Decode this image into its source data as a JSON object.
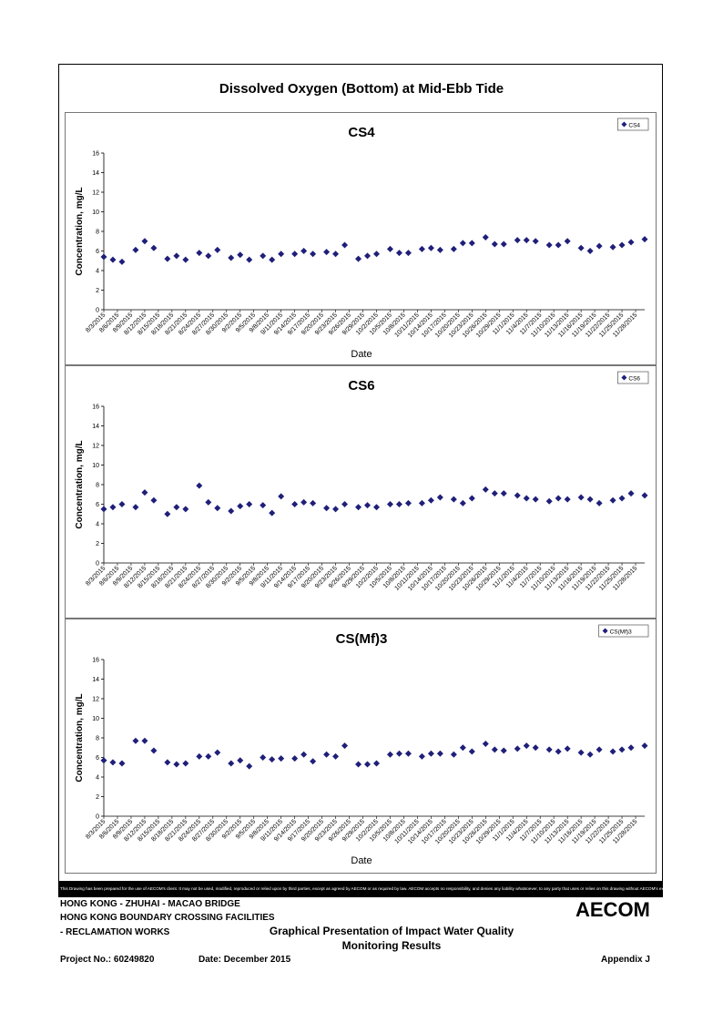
{
  "page": {
    "title": "Dissolved Oxygen (Bottom) at Mid-Ebb Tide",
    "disclaimer": "This Drawing has been prepared for the use of AECOM's client. It may not be used, modified, reproduced or relied upon by third parties, except as agreed by AECOM or as required by law. AECOM accepts no responsibility, and denies any liability whatsoever, to any party that uses or relies on this drawing without AECOM's express written consent.",
    "footer": {
      "line1": "HONG KONG - ZHUHAI - MACAO BRIDGE",
      "line2": "HONG KONG BOUNDARY CROSSING FACILITIES",
      "line3": "- RECLAMATION WORKS",
      "heading1": "Graphical Presentation of Impact Water Quality",
      "heading2": "Monitoring Results",
      "project": "Project No.: 60249820",
      "date": "Date: December 2015",
      "appendix": "Appendix J",
      "logo": "AECOM"
    },
    "marker_color": "#1f1f7a"
  },
  "chart_data": [
    {
      "type": "scatter",
      "title": "CS4",
      "xlabel": "Date",
      "ylabel": "Concentration, mg/L",
      "ylim": [
        0,
        16
      ],
      "yticks": [
        0,
        2,
        4,
        6,
        8,
        10,
        12,
        14,
        16
      ],
      "legend": "top-right",
      "grid": false,
      "x_range": [
        "8/3/2015",
        "11/30/2015"
      ],
      "xtick_labels": [
        "8/3/2015",
        "8/6/2015",
        "8/9/2015",
        "8/12/2015",
        "8/15/2015",
        "8/18/2015",
        "8/21/2015",
        "8/24/2015",
        "8/27/2015",
        "8/30/2015",
        "9/2/2015",
        "9/5/2015",
        "9/8/2015",
        "9/11/2015",
        "9/14/2015",
        "9/17/2015",
        "9/20/2015",
        "9/23/2015",
        "9/26/2015",
        "9/29/2015",
        "10/2/2015",
        "10/5/2015",
        "10/8/2015",
        "10/11/2015",
        "10/14/2015",
        "10/17/2015",
        "10/20/2015",
        "10/23/2015",
        "10/26/2015",
        "10/29/2015",
        "11/1/2015",
        "11/4/2015",
        "11/7/2015",
        "11/10/2015",
        "11/13/2015",
        "11/16/2015",
        "11/19/2015",
        "11/22/2015",
        "11/25/2015",
        "11/28/2015"
      ],
      "series": [
        {
          "name": "CS4",
          "x": [
            "8/3/2015",
            "8/5/2015",
            "8/7/2015",
            "8/10/2015",
            "8/12/2015",
            "8/14/2015",
            "8/17/2015",
            "8/19/2015",
            "8/21/2015",
            "8/24/2015",
            "8/26/2015",
            "8/28/2015",
            "8/31/2015",
            "9/2/2015",
            "9/4/2015",
            "9/7/2015",
            "9/9/2015",
            "9/11/2015",
            "9/14/2015",
            "9/16/2015",
            "9/18/2015",
            "9/21/2015",
            "9/23/2015",
            "9/25/2015",
            "9/28/2015",
            "9/30/2015",
            "10/2/2015",
            "10/5/2015",
            "10/7/2015",
            "10/9/2015",
            "10/12/2015",
            "10/14/2015",
            "10/16/2015",
            "10/19/2015",
            "10/21/2015",
            "10/23/2015",
            "10/26/2015",
            "10/28/2015",
            "10/30/2015",
            "11/2/2015",
            "11/4/2015",
            "11/6/2015",
            "11/9/2015",
            "11/11/2015",
            "11/13/2015",
            "11/16/2015",
            "11/18/2015",
            "11/20/2015",
            "11/23/2015",
            "11/25/2015",
            "11/27/2015",
            "11/30/2015"
          ],
          "y": [
            5.4,
            5.1,
            4.9,
            6.1,
            7.0,
            6.3,
            5.2,
            5.5,
            5.1,
            5.8,
            5.5,
            6.1,
            5.3,
            5.6,
            5.1,
            5.5,
            5.1,
            5.7,
            5.7,
            6.0,
            5.7,
            5.9,
            5.7,
            6.6,
            5.2,
            5.5,
            5.7,
            6.2,
            5.8,
            5.8,
            6.2,
            6.3,
            6.1,
            6.2,
            6.8,
            6.8,
            7.4,
            6.7,
            6.7,
            7.1,
            7.1,
            7.0,
            6.6,
            6.6,
            7.0,
            6.3,
            6.0,
            6.5,
            6.4,
            6.6,
            6.9,
            7.2
          ]
        }
      ]
    },
    {
      "type": "scatter",
      "title": "CS6",
      "xlabel": "",
      "ylabel": "Concentration, mg/L",
      "ylim": [
        0,
        16
      ],
      "yticks": [
        0,
        2,
        4,
        6,
        8,
        10,
        12,
        14,
        16
      ],
      "legend": "top-right",
      "grid": false,
      "x_range": [
        "8/3/2015",
        "11/30/2015"
      ],
      "xtick_labels": [
        "8/3/2015",
        "8/6/2015",
        "8/9/2015",
        "8/12/2015",
        "8/15/2015",
        "8/18/2015",
        "8/21/2015",
        "8/24/2015",
        "8/27/2015",
        "8/30/2015",
        "9/2/2015",
        "9/5/2015",
        "9/8/2015",
        "9/11/2015",
        "9/14/2015",
        "9/17/2015",
        "9/20/2015",
        "9/23/2015",
        "9/26/2015",
        "9/29/2015",
        "10/2/2015",
        "10/5/2015",
        "10/8/2015",
        "10/11/2015",
        "10/14/2015",
        "10/17/2015",
        "10/20/2015",
        "10/23/2015",
        "10/26/2015",
        "10/29/2015",
        "11/1/2015",
        "11/4/2015",
        "11/7/2015",
        "11/10/2015",
        "11/13/2015",
        "11/16/2015",
        "11/19/2015",
        "11/22/2015",
        "11/25/2015",
        "11/28/2015"
      ],
      "series": [
        {
          "name": "CS6",
          "x": [
            "8/3/2015",
            "8/5/2015",
            "8/7/2015",
            "8/10/2015",
            "8/12/2015",
            "8/14/2015",
            "8/17/2015",
            "8/19/2015",
            "8/21/2015",
            "8/24/2015",
            "8/26/2015",
            "8/28/2015",
            "8/31/2015",
            "9/2/2015",
            "9/4/2015",
            "9/7/2015",
            "9/9/2015",
            "9/11/2015",
            "9/14/2015",
            "9/16/2015",
            "9/18/2015",
            "9/21/2015",
            "9/23/2015",
            "9/25/2015",
            "9/28/2015",
            "9/30/2015",
            "10/2/2015",
            "10/5/2015",
            "10/7/2015",
            "10/9/2015",
            "10/12/2015",
            "10/14/2015",
            "10/16/2015",
            "10/19/2015",
            "10/21/2015",
            "10/23/2015",
            "10/26/2015",
            "10/28/2015",
            "10/30/2015",
            "11/2/2015",
            "11/4/2015",
            "11/6/2015",
            "11/9/2015",
            "11/11/2015",
            "11/13/2015",
            "11/16/2015",
            "11/18/2015",
            "11/20/2015",
            "11/23/2015",
            "11/25/2015",
            "11/27/2015",
            "11/30/2015"
          ],
          "y": [
            5.5,
            5.7,
            6.0,
            5.7,
            7.2,
            6.4,
            5.0,
            5.7,
            5.5,
            7.9,
            6.2,
            5.6,
            5.3,
            5.8,
            6.0,
            5.9,
            5.1,
            6.8,
            6.0,
            6.2,
            6.1,
            5.6,
            5.5,
            6.0,
            5.7,
            5.9,
            5.7,
            6.0,
            6.0,
            6.1,
            6.1,
            6.4,
            6.7,
            6.5,
            6.1,
            6.6,
            7.5,
            7.1,
            7.1,
            6.9,
            6.6,
            6.5,
            6.3,
            6.6,
            6.5,
            6.7,
            6.5,
            6.1,
            6.4,
            6.6,
            7.1,
            6.9
          ]
        }
      ]
    },
    {
      "type": "scatter",
      "title": "CS(Mf)3",
      "xlabel": "Date",
      "ylabel": "Concentration, mg/L",
      "ylim": [
        0,
        16
      ],
      "yticks": [
        0,
        2,
        4,
        6,
        8,
        10,
        12,
        14,
        16
      ],
      "legend": "top-right",
      "grid": false,
      "x_range": [
        "8/3/2015",
        "11/30/2015"
      ],
      "xtick_labels": [
        "8/3/2015",
        "8/6/2015",
        "8/9/2015",
        "8/12/2015",
        "8/15/2015",
        "8/18/2015",
        "8/21/2015",
        "8/24/2015",
        "8/27/2015",
        "8/30/2015",
        "9/2/2015",
        "9/5/2015",
        "9/8/2015",
        "9/11/2015",
        "9/14/2015",
        "9/17/2015",
        "9/20/2015",
        "9/23/2015",
        "9/26/2015",
        "9/29/2015",
        "10/2/2015",
        "10/5/2015",
        "10/8/2015",
        "10/11/2015",
        "10/14/2015",
        "10/17/2015",
        "10/20/2015",
        "10/23/2015",
        "10/26/2015",
        "10/29/2015",
        "11/1/2015",
        "11/4/2015",
        "11/7/2015",
        "11/10/2015",
        "11/13/2015",
        "11/16/2015",
        "11/19/2015",
        "11/22/2015",
        "11/25/2015",
        "11/28/2015"
      ],
      "series": [
        {
          "name": "CS(Mf)3",
          "x": [
            "8/3/2015",
            "8/5/2015",
            "8/7/2015",
            "8/10/2015",
            "8/12/2015",
            "8/14/2015",
            "8/17/2015",
            "8/19/2015",
            "8/21/2015",
            "8/24/2015",
            "8/26/2015",
            "8/28/2015",
            "8/31/2015",
            "9/2/2015",
            "9/4/2015",
            "9/7/2015",
            "9/9/2015",
            "9/11/2015",
            "9/14/2015",
            "9/16/2015",
            "9/18/2015",
            "9/21/2015",
            "9/23/2015",
            "9/25/2015",
            "9/28/2015",
            "9/30/2015",
            "10/2/2015",
            "10/5/2015",
            "10/7/2015",
            "10/9/2015",
            "10/12/2015",
            "10/14/2015",
            "10/16/2015",
            "10/19/2015",
            "10/21/2015",
            "10/23/2015",
            "10/26/2015",
            "10/28/2015",
            "10/30/2015",
            "11/2/2015",
            "11/4/2015",
            "11/6/2015",
            "11/9/2015",
            "11/11/2015",
            "11/13/2015",
            "11/16/2015",
            "11/18/2015",
            "11/20/2015",
            "11/23/2015",
            "11/25/2015",
            "11/27/2015",
            "11/30/2015"
          ],
          "y": [
            5.7,
            5.5,
            5.4,
            7.7,
            7.7,
            6.7,
            5.5,
            5.3,
            5.4,
            6.1,
            6.1,
            6.5,
            5.4,
            5.7,
            5.1,
            6.0,
            5.8,
            5.9,
            5.9,
            6.3,
            5.6,
            6.3,
            6.1,
            7.2,
            5.3,
            5.3,
            5.4,
            6.3,
            6.4,
            6.4,
            6.1,
            6.4,
            6.4,
            6.3,
            7.0,
            6.6,
            7.4,
            6.8,
            6.7,
            6.9,
            7.2,
            7.0,
            6.8,
            6.6,
            6.9,
            6.5,
            6.3,
            6.8,
            6.6,
            6.8,
            7.0,
            7.2
          ]
        }
      ]
    }
  ]
}
